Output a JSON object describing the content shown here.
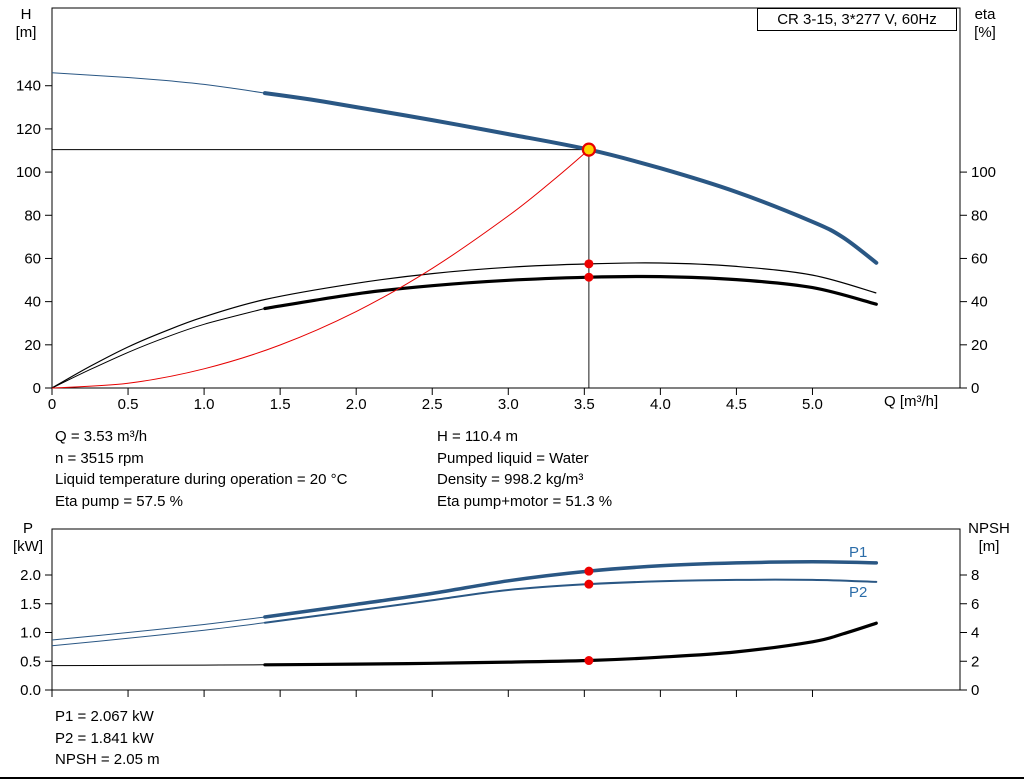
{
  "title_box": "CR 3-15, 3*277 V, 60Hz",
  "colors": {
    "curve_blue": "#2a5784",
    "label_blue": "#2a6ca8",
    "curve_black": "#000000",
    "curve_red": "#e60000",
    "marker_red": "#ee0000",
    "duty_fill": "#ffd400",
    "duty_ring": "#e60000"
  },
  "chart_data": [
    {
      "type": "line",
      "title": "CR 3-15, 3*277 V, 60Hz",
      "x_axis": {
        "label": "Q [m³/h]",
        "range": [
          0,
          5.97
        ],
        "tick_values": [
          0,
          0.5,
          1,
          1.5,
          2,
          2.5,
          3,
          3.5,
          4,
          4.5,
          5
        ],
        "ticks": [
          "0",
          "0.5",
          "1.0",
          "1.5",
          "2.0",
          "2.5",
          "3.0",
          "3.5",
          "4.0",
          "4.5",
          "5.0"
        ],
        "show_tick_labels": true
      },
      "left_axis": {
        "label": "H",
        "unit": "[m]",
        "range": [
          0,
          176
        ],
        "tick_values": [
          0,
          20,
          40,
          60,
          80,
          100,
          120,
          140
        ],
        "ticks": [
          "0",
          "20",
          "40",
          "60",
          "80",
          "100",
          "120",
          "140"
        ]
      },
      "right_axis": {
        "label": "eta",
        "unit": "[%]",
        "range": [
          0,
          176
        ],
        "tick_values": [
          0,
          20,
          40,
          60,
          80,
          100
        ],
        "ticks": [
          "0",
          "20",
          "40",
          "60",
          "80",
          "100"
        ]
      },
      "crosshair": {
        "q": 3.53,
        "value": 110.4,
        "axis": "left"
      },
      "series": [
        {
          "name": "head-curve",
          "color": "#2a5784",
          "width": 4,
          "thin_width": 1,
          "thick_from": 1.4,
          "axis": "left",
          "points": [
            [
              0,
              146
            ],
            [
              0.25,
              144.9
            ],
            [
              0.5,
              143.8
            ],
            [
              0.75,
              142.4
            ],
            [
              1.0,
              140.6
            ],
            [
              1.2,
              138.7
            ],
            [
              1.4,
              136.6
            ],
            [
              1.7,
              133.6
            ],
            [
              2.0,
              130.1
            ],
            [
              2.5,
              124.1
            ],
            [
              3.0,
              117.6
            ],
            [
              3.53,
              110.4
            ],
            [
              4.0,
              101.8
            ],
            [
              4.5,
              90.8
            ],
            [
              5.0,
              77.0
            ],
            [
              5.2,
              69.8
            ],
            [
              5.42,
              58.0
            ]
          ]
        },
        {
          "name": "eta-pump-curve",
          "color": "#000000",
          "width": 1.2,
          "axis": "right",
          "points": [
            [
              0,
              0
            ],
            [
              0.25,
              10
            ],
            [
              0.5,
              19
            ],
            [
              0.75,
              26.5
            ],
            [
              1.0,
              33
            ],
            [
              1.4,
              41
            ],
            [
              2.0,
              48.5
            ],
            [
              2.5,
              53
            ],
            [
              3.0,
              55.9
            ],
            [
              3.53,
              57.5
            ],
            [
              4.0,
              57.9
            ],
            [
              4.5,
              56.3
            ],
            [
              5.0,
              52.3
            ],
            [
              5.42,
              44
            ]
          ]
        },
        {
          "name": "eta-pump-motor-curve",
          "color": "#000000",
          "width": 3.2,
          "thin_width": 1,
          "thick_from": 1.4,
          "axis": "right",
          "points": [
            [
              0,
              0
            ],
            [
              0.25,
              8.5
            ],
            [
              0.5,
              16.5
            ],
            [
              0.75,
              23.5
            ],
            [
              1.0,
              29.5
            ],
            [
              1.4,
              36.8
            ],
            [
              2.0,
              43.6
            ],
            [
              2.5,
              47.4
            ],
            [
              3.0,
              49.9
            ],
            [
              3.53,
              51.3
            ],
            [
              4.0,
              51.6
            ],
            [
              4.5,
              50.2
            ],
            [
              5.0,
              46.5
            ],
            [
              5.42,
              38.8
            ]
          ]
        },
        {
          "name": "system-curve",
          "color": "#e60000",
          "width": 1,
          "axis": "left",
          "points": [
            [
              0,
              0
            ],
            [
              0.5,
              2.2
            ],
            [
              1.0,
              8.9
            ],
            [
              1.5,
              19.9
            ],
            [
              2.0,
              35.4
            ],
            [
              2.5,
              55.4
            ],
            [
              3.0,
              79.7
            ],
            [
              3.3,
              96.5
            ],
            [
              3.53,
              110.4
            ]
          ]
        }
      ],
      "markers": [
        {
          "name": "duty-point-marker",
          "q": 3.53,
          "value": 110.4,
          "axis": "left",
          "style": "duty"
        },
        {
          "name": "eta-pump-point",
          "q": 3.53,
          "value": 57.5,
          "axis": "right",
          "style": "dot"
        },
        {
          "name": "eta-pump-motor-point",
          "q": 3.53,
          "value": 51.3,
          "axis": "right",
          "style": "dot"
        }
      ]
    },
    {
      "type": "line",
      "title": "",
      "x_axis": {
        "label": "",
        "range": [
          0,
          5.97
        ],
        "tick_values": [
          0,
          0.5,
          1,
          1.5,
          2,
          2.5,
          3,
          3.5,
          4,
          4.5,
          5
        ],
        "ticks": [],
        "show_tick_labels": false
      },
      "left_axis": {
        "label": "P",
        "unit": "[kW]",
        "range": [
          0,
          2.8
        ],
        "tick_values": [
          0,
          0.5,
          1,
          1.5,
          2
        ],
        "ticks": [
          "0.0",
          "0.5",
          "1.0",
          "1.5",
          "2.0"
        ]
      },
      "right_axis": {
        "label": "NPSH",
        "unit": "[m]",
        "range": [
          0,
          11.2
        ],
        "tick_values": [
          0,
          2,
          4,
          6,
          8
        ],
        "ticks": [
          "0",
          "2",
          "4",
          "6",
          "8"
        ]
      },
      "series": [
        {
          "name": "p1-curve",
          "label": "P1",
          "color": "#2a5784",
          "width": 3.5,
          "thin_width": 1,
          "thick_from": 1.4,
          "axis": "left",
          "points": [
            [
              0,
              0.87
            ],
            [
              0.5,
              1.0
            ],
            [
              1.0,
              1.14
            ],
            [
              1.4,
              1.27
            ],
            [
              2.0,
              1.49
            ],
            [
              2.5,
              1.68
            ],
            [
              3.0,
              1.9
            ],
            [
              3.53,
              2.067
            ],
            [
              4.0,
              2.16
            ],
            [
              4.5,
              2.21
            ],
            [
              5.0,
              2.23
            ],
            [
              5.42,
              2.21
            ]
          ]
        },
        {
          "name": "p2-curve",
          "label": "P2",
          "color": "#2a5784",
          "width": 2,
          "thin_width": 1,
          "thick_from": 1.4,
          "axis": "left",
          "points": [
            [
              0,
              0.77
            ],
            [
              0.5,
              0.9
            ],
            [
              1.0,
              1.04
            ],
            [
              1.4,
              1.17
            ],
            [
              2.0,
              1.38
            ],
            [
              2.5,
              1.56
            ],
            [
              3.0,
              1.74
            ],
            [
              3.53,
              1.841
            ],
            [
              4.0,
              1.89
            ],
            [
              4.5,
              1.915
            ],
            [
              5.0,
              1.915
            ],
            [
              5.42,
              1.88
            ]
          ]
        },
        {
          "name": "npsh-curve",
          "label": "NPSH",
          "color": "#000000",
          "width": 3.2,
          "thin_width": 1,
          "thick_from": 1.4,
          "axis": "right",
          "points": [
            [
              0,
              1.7
            ],
            [
              0.5,
              1.71
            ],
            [
              1.0,
              1.73
            ],
            [
              1.4,
              1.75
            ],
            [
              2.0,
              1.8
            ],
            [
              2.5,
              1.86
            ],
            [
              3.0,
              1.94
            ],
            [
              3.53,
              2.05
            ],
            [
              4.0,
              2.28
            ],
            [
              4.5,
              2.65
            ],
            [
              5.0,
              3.35
            ],
            [
              5.2,
              3.9
            ],
            [
              5.42,
              4.65
            ]
          ]
        }
      ],
      "markers": [
        {
          "name": "p1-point",
          "q": 3.53,
          "value": 2.067,
          "axis": "left",
          "style": "dot"
        },
        {
          "name": "p2-point",
          "q": 3.53,
          "value": 1.841,
          "axis": "left",
          "style": "dot"
        },
        {
          "name": "npsh-point",
          "q": 3.53,
          "value": 2.05,
          "axis": "right",
          "style": "dot"
        }
      ]
    }
  ],
  "operating_data": {
    "left": [
      "Q = 3.53 m³/h",
      "n = 3515 rpm",
      "Liquid temperature during operation = 20 °C",
      "Eta pump = 57.5 %"
    ],
    "right": [
      "H = 110.4 m",
      "Pumped liquid = Water",
      "Density = 998.2 kg/m³",
      "Eta pump+motor = 51.3 %"
    ]
  },
  "power_data": [
    "P1 = 2.067 kW",
    "P2 = 1.841 kW",
    "NPSH = 2.05 m"
  ]
}
